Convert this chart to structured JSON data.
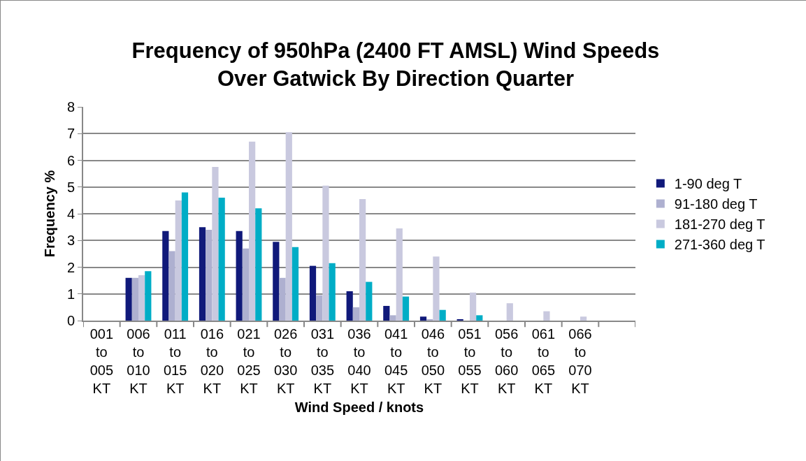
{
  "chart_data": {
    "type": "bar",
    "title": "Frequency of 950hPa (2400 FT AMSL) Wind Speeds Over Gatwick By Direction Quarter",
    "xlabel": "Wind Speed / knots",
    "ylabel": "Frequency %",
    "categories": [
      "001 to 005 KT",
      "006 to 010 KT",
      "011 to 015 KT",
      "016 to 020 KT",
      "021 to 025 KT",
      "026 to 030 KT",
      "031 to 035 KT",
      "036 to 040 KT",
      "041 to 045 KT",
      "046 to 050 KT",
      "051 to 055 KT",
      "056 to 060 KT",
      "061 to 065 KT",
      "066 to 070 KT",
      null
    ],
    "series": [
      {
        "name": "1-90 deg T",
        "color": "#10197a",
        "values": [
          0,
          1.6,
          3.35,
          3.5,
          3.35,
          2.95,
          2.05,
          1.1,
          0.55,
          0.15,
          0.05,
          0,
          0,
          0,
          null
        ]
      },
      {
        "name": "91-180 deg T",
        "color": "#aeb0d0",
        "values": [
          0,
          1.6,
          2.6,
          3.4,
          2.7,
          1.6,
          0.95,
          0.5,
          0.2,
          0.05,
          0,
          0,
          0,
          0,
          null
        ]
      },
      {
        "name": "181-270 deg T",
        "color": "#c9c9df",
        "values": [
          0,
          1.7,
          4.5,
          5.75,
          6.7,
          7.05,
          5.05,
          4.55,
          3.45,
          2.4,
          1.05,
          0.65,
          0.35,
          0.15,
          null
        ]
      },
      {
        "name": "271-360 deg T",
        "color": "#00adc6",
        "values": [
          0,
          1.85,
          4.8,
          4.6,
          4.2,
          2.75,
          2.15,
          1.45,
          0.9,
          0.4,
          0.2,
          0,
          0,
          0,
          null
        ]
      }
    ],
    "ylim": [
      0,
      8
    ],
    "yticks": [
      0,
      1,
      2,
      3,
      4,
      5,
      6,
      7,
      8
    ],
    "grid": "y",
    "legend": "right"
  }
}
